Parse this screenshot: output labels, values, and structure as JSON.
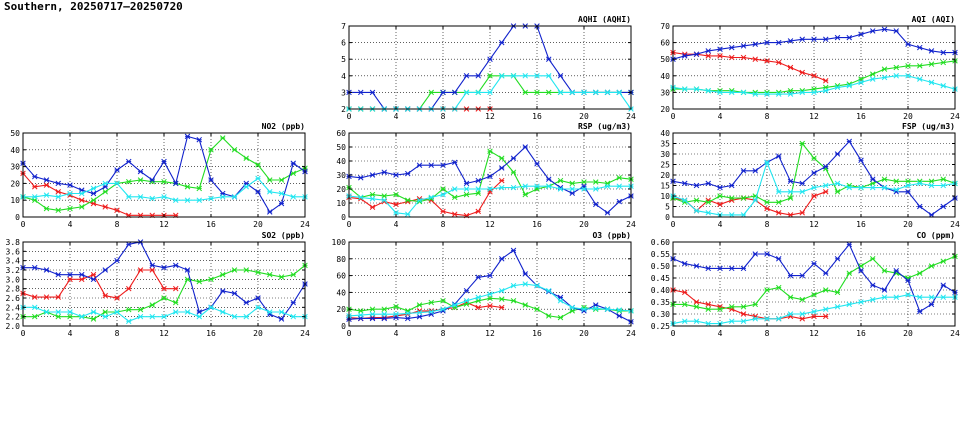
{
  "page": {
    "title": "Southern, 20250717–20250720"
  },
  "colors": {
    "red": "#ee1c1c",
    "green": "#22dd22",
    "blue": "#1122cc",
    "cyan": "#22e6f0",
    "grid": "#000000"
  },
  "chart_data": [
    {
      "type": "line",
      "title": "AQHI (AQHI)",
      "xlabel": "",
      "ylabel": "",
      "xlim": [
        0,
        24
      ],
      "ylim": [
        2,
        7
      ],
      "xticks": [
        0,
        4,
        8,
        12,
        16,
        20,
        24
      ],
      "yticks": [
        2,
        3,
        4,
        5,
        6,
        7
      ],
      "grid": true,
      "series": [
        {
          "color": "red",
          "values": [
            2,
            2,
            2,
            2,
            2,
            2,
            2,
            2,
            2,
            2,
            2,
            2,
            2
          ]
        },
        {
          "color": "green",
          "values": [
            2,
            2,
            2,
            2,
            2,
            2,
            2,
            3,
            3,
            3,
            3,
            3,
            4,
            4,
            4,
            3,
            3,
            3,
            3,
            3,
            3,
            3,
            3,
            3,
            3
          ]
        },
        {
          "color": "blue",
          "values": [
            3,
            3,
            3,
            2,
            2,
            2,
            2,
            2,
            3,
            3,
            4,
            4,
            5,
            6,
            7,
            7,
            7,
            5,
            4,
            3,
            3,
            3,
            3,
            3,
            3
          ]
        },
        {
          "color": "cyan",
          "values": [
            2,
            2,
            2,
            2,
            2,
            2,
            2,
            2,
            2,
            2,
            3,
            3,
            3,
            4,
            4,
            4,
            4,
            4,
            3,
            3,
            3,
            3,
            3,
            3,
            2
          ]
        }
      ]
    },
    {
      "type": "line",
      "title": "AQI (AQI)",
      "xlabel": "",
      "ylabel": "",
      "xlim": [
        0,
        24
      ],
      "ylim": [
        20,
        70
      ],
      "xticks": [
        0,
        4,
        8,
        12,
        16,
        20,
        24
      ],
      "yticks": [
        20,
        30,
        40,
        50,
        60,
        70
      ],
      "grid": true,
      "series": [
        {
          "color": "red",
          "values": [
            54,
            53,
            53,
            52,
            52,
            51,
            51,
            50,
            49,
            48,
            45,
            42,
            40,
            37
          ]
        },
        {
          "color": "green",
          "values": [
            32,
            32,
            32,
            31,
            31,
            31,
            30,
            30,
            30,
            30,
            31,
            31,
            32,
            33,
            34,
            35,
            38,
            41,
            44,
            45,
            46,
            46,
            47,
            48,
            49
          ]
        },
        {
          "color": "blue",
          "values": [
            50,
            52,
            53,
            55,
            56,
            57,
            58,
            59,
            60,
            60,
            61,
            62,
            62,
            62,
            63,
            63,
            65,
            67,
            68,
            67,
            59,
            57,
            55,
            54,
            54
          ]
        },
        {
          "color": "cyan",
          "values": [
            33,
            32,
            32,
            31,
            30,
            30,
            30,
            29,
            29,
            29,
            29,
            30,
            30,
            31,
            33,
            34,
            36,
            38,
            39,
            40,
            40,
            38,
            36,
            34,
            32
          ]
        }
      ]
    },
    {
      "type": "line",
      "title": "NO2 (ppb)",
      "xlabel": "",
      "ylabel": "",
      "xlim": [
        0,
        24
      ],
      "ylim": [
        0,
        50
      ],
      "xticks": [
        0,
        4,
        8,
        12,
        16,
        20,
        24
      ],
      "yticks": [
        0,
        10,
        20,
        30,
        40,
        50
      ],
      "grid": true,
      "series": [
        {
          "color": "red",
          "values": [
            26,
            18,
            19,
            15,
            13,
            10,
            8,
            6,
            4,
            1,
            1,
            1,
            1,
            1
          ]
        },
        {
          "color": "green",
          "values": [
            12,
            10,
            5,
            4,
            5,
            6,
            10,
            15,
            20,
            21,
            22,
            21,
            21,
            20,
            18,
            17,
            40,
            47,
            40,
            35,
            31,
            22,
            22,
            26,
            29
          ]
        },
        {
          "color": "blue",
          "values": [
            32,
            24,
            22,
            20,
            19,
            16,
            14,
            18,
            28,
            33,
            27,
            22,
            33,
            20,
            48,
            46,
            22,
            14,
            12,
            20,
            15,
            3,
            8,
            32,
            27
          ]
        },
        {
          "color": "cyan",
          "values": [
            12,
            12,
            13,
            12,
            14,
            14,
            17,
            20,
            20,
            12,
            12,
            11,
            12,
            10,
            10,
            10,
            11,
            12,
            12,
            18,
            23,
            15,
            14,
            12,
            12
          ]
        }
      ]
    },
    {
      "type": "line",
      "title": "RSP (ug/m3)",
      "xlabel": "",
      "ylabel": "",
      "xlim": [
        0,
        24
      ],
      "ylim": [
        0,
        60
      ],
      "xticks": [
        0,
        4,
        8,
        12,
        16,
        20,
        24
      ],
      "yticks": [
        0,
        10,
        20,
        30,
        40,
        50,
        60
      ],
      "grid": true,
      "series": [
        {
          "color": "red",
          "values": [
            14,
            13,
            7,
            11,
            9,
            11,
            13,
            12,
            4,
            2,
            1,
            4,
            18,
            26
          ]
        },
        {
          "color": "green",
          "values": [
            21,
            14,
            16,
            15,
            16,
            12,
            11,
            13,
            20,
            14,
            16,
            17,
            47,
            42,
            32,
            16,
            20,
            22,
            26,
            24,
            25,
            25,
            24,
            28,
            27
          ]
        },
        {
          "color": "blue",
          "values": [
            29,
            28,
            30,
            32,
            30,
            31,
            37,
            37,
            37,
            39,
            24,
            26,
            29,
            35,
            42,
            50,
            38,
            27,
            21,
            17,
            22,
            9,
            3,
            11,
            15
          ]
        },
        {
          "color": "cyan",
          "values": [
            15,
            14,
            13,
            12,
            3,
            2,
            12,
            14,
            16,
            20,
            20,
            20,
            20,
            21,
            21,
            22,
            22,
            22,
            20,
            20,
            20,
            20,
            22,
            22,
            22
          ]
        }
      ]
    },
    {
      "type": "line",
      "title": "FSP (ug/m3)",
      "xlabel": "",
      "ylabel": "",
      "xlim": [
        0,
        24
      ],
      "ylim": [
        0,
        40
      ],
      "xticks": [
        0,
        4,
        8,
        12,
        16,
        20,
        24
      ],
      "yticks": [
        0,
        5,
        10,
        15,
        20,
        25,
        30,
        35,
        40
      ],
      "grid": true,
      "series": [
        {
          "color": "red",
          "values": [
            9,
            8,
            3,
            8,
            6,
            8,
            9,
            8,
            4,
            2,
            1,
            2,
            10,
            12
          ]
        },
        {
          "color": "green",
          "values": [
            9,
            7,
            8,
            7,
            10,
            9,
            9,
            10,
            7,
            7,
            9,
            35,
            28,
            23,
            12,
            15,
            14,
            16,
            18,
            17,
            17,
            17,
            17,
            18,
            16
          ]
        },
        {
          "color": "blue",
          "values": [
            17,
            16,
            15,
            16,
            14,
            15,
            22,
            22,
            26,
            29,
            17,
            16,
            21,
            24,
            30,
            36,
            27,
            18,
            14,
            12,
            12,
            5,
            1,
            5,
            9
          ]
        },
        {
          "color": "cyan",
          "values": [
            10,
            8,
            3,
            2,
            1,
            1,
            1,
            8,
            26,
            12,
            12,
            12,
            14,
            15,
            16,
            14,
            14,
            14,
            14,
            13,
            15,
            16,
            15,
            15,
            16
          ]
        }
      ]
    },
    {
      "type": "line",
      "title": "SO2 (ppb)",
      "xlabel": "",
      "ylabel": "",
      "xlim": [
        0,
        24
      ],
      "ylim": [
        2.0,
        3.8
      ],
      "xticks": [
        0,
        4,
        8,
        12,
        16,
        20,
        24
      ],
      "yticks": [
        2.0,
        2.2,
        2.4,
        2.6,
        2.8,
        3.0,
        3.2,
        3.4,
        3.6,
        3.8
      ],
      "grid": true,
      "series": [
        {
          "color": "red",
          "values": [
            2.7,
            2.62,
            2.62,
            2.62,
            3.0,
            3.0,
            3.1,
            2.65,
            2.6,
            2.8,
            3.2,
            3.2,
            2.8,
            2.8
          ]
        },
        {
          "color": "green",
          "values": [
            2.2,
            2.2,
            2.3,
            2.2,
            2.2,
            2.2,
            2.15,
            2.3,
            2.3,
            2.35,
            2.35,
            2.45,
            2.6,
            2.5,
            3.0,
            2.95,
            3.0,
            3.1,
            3.2,
            3.2,
            3.15,
            3.1,
            3.05,
            3.1,
            3.3
          ]
        },
        {
          "color": "blue",
          "values": [
            3.25,
            3.25,
            3.2,
            3.1,
            3.1,
            3.1,
            3.0,
            3.2,
            3.4,
            3.75,
            3.8,
            3.3,
            3.25,
            3.3,
            3.2,
            2.3,
            2.4,
            2.75,
            2.7,
            2.5,
            2.6,
            2.25,
            2.15,
            2.5,
            2.9
          ]
        },
        {
          "color": "cyan",
          "values": [
            2.4,
            2.4,
            2.3,
            2.3,
            2.3,
            2.2,
            2.3,
            2.2,
            2.3,
            2.1,
            2.2,
            2.2,
            2.2,
            2.3,
            2.3,
            2.2,
            2.4,
            2.3,
            2.2,
            2.2,
            2.4,
            2.3,
            2.3,
            2.2,
            2.2
          ]
        }
      ]
    },
    {
      "type": "line",
      "title": "O3 (ppb)",
      "xlabel": "",
      "ylabel": "",
      "xlim": [
        0,
        24
      ],
      "ylim": [
        0,
        100
      ],
      "xticks": [
        0,
        4,
        8,
        12,
        16,
        20,
        24
      ],
      "yticks": [
        0,
        20,
        40,
        60,
        80,
        100
      ],
      "grid": true,
      "series": [
        {
          "color": "red",
          "values": [
            10,
            9,
            10,
            10,
            12,
            14,
            18,
            18,
            20,
            22,
            28,
            22,
            24,
            22
          ]
        },
        {
          "color": "green",
          "values": [
            20,
            18,
            20,
            20,
            23,
            18,
            25,
            28,
            30,
            22,
            26,
            30,
            33,
            32,
            30,
            25,
            20,
            12,
            10,
            18,
            22,
            20,
            20,
            18,
            18
          ]
        },
        {
          "color": "blue",
          "values": [
            8,
            9,
            9,
            9,
            10,
            9,
            11,
            14,
            18,
            26,
            42,
            58,
            60,
            80,
            90,
            62,
            48,
            41,
            34,
            22,
            18,
            25,
            20,
            12,
            5
          ]
        },
        {
          "color": "cyan",
          "values": [
            12,
            13,
            14,
            14,
            14,
            15,
            16,
            17,
            20,
            25,
            30,
            34,
            38,
            42,
            48,
            50,
            48,
            42,
            30,
            22,
            20,
            21,
            20,
            19,
            18
          ]
        }
      ]
    },
    {
      "type": "line",
      "title": "CO (ppm)",
      "xlabel": "",
      "ylabel": "",
      "xlim": [
        0,
        24
      ],
      "ylim": [
        0.25,
        0.6
      ],
      "xticks": [
        0,
        4,
        8,
        12,
        16,
        20,
        24
      ],
      "yticks": [
        0.25,
        0.3,
        0.35,
        0.4,
        0.45,
        0.5,
        0.55,
        0.6
      ],
      "grid": true,
      "series": [
        {
          "color": "red",
          "values": [
            0.4,
            0.39,
            0.35,
            0.34,
            0.33,
            0.32,
            0.3,
            0.29,
            0.28,
            0.28,
            0.29,
            0.28,
            0.29,
            0.29
          ]
        },
        {
          "color": "green",
          "values": [
            0.34,
            0.34,
            0.33,
            0.32,
            0.32,
            0.33,
            0.33,
            0.34,
            0.4,
            0.41,
            0.37,
            0.36,
            0.38,
            0.4,
            0.39,
            0.47,
            0.5,
            0.53,
            0.48,
            0.47,
            0.45,
            0.47,
            0.5,
            0.52,
            0.54
          ]
        },
        {
          "color": "blue",
          "values": [
            0.53,
            0.51,
            0.5,
            0.49,
            0.49,
            0.49,
            0.49,
            0.55,
            0.55,
            0.53,
            0.46,
            0.46,
            0.51,
            0.47,
            0.53,
            0.59,
            0.48,
            0.42,
            0.4,
            0.48,
            0.44,
            0.31,
            0.34,
            0.42,
            0.39
          ]
        },
        {
          "color": "cyan",
          "values": [
            0.26,
            0.27,
            0.27,
            0.26,
            0.26,
            0.27,
            0.27,
            0.28,
            0.28,
            0.28,
            0.3,
            0.3,
            0.31,
            0.32,
            0.33,
            0.34,
            0.35,
            0.36,
            0.37,
            0.37,
            0.38,
            0.37,
            0.37,
            0.37,
            0.37
          ]
        }
      ]
    }
  ]
}
